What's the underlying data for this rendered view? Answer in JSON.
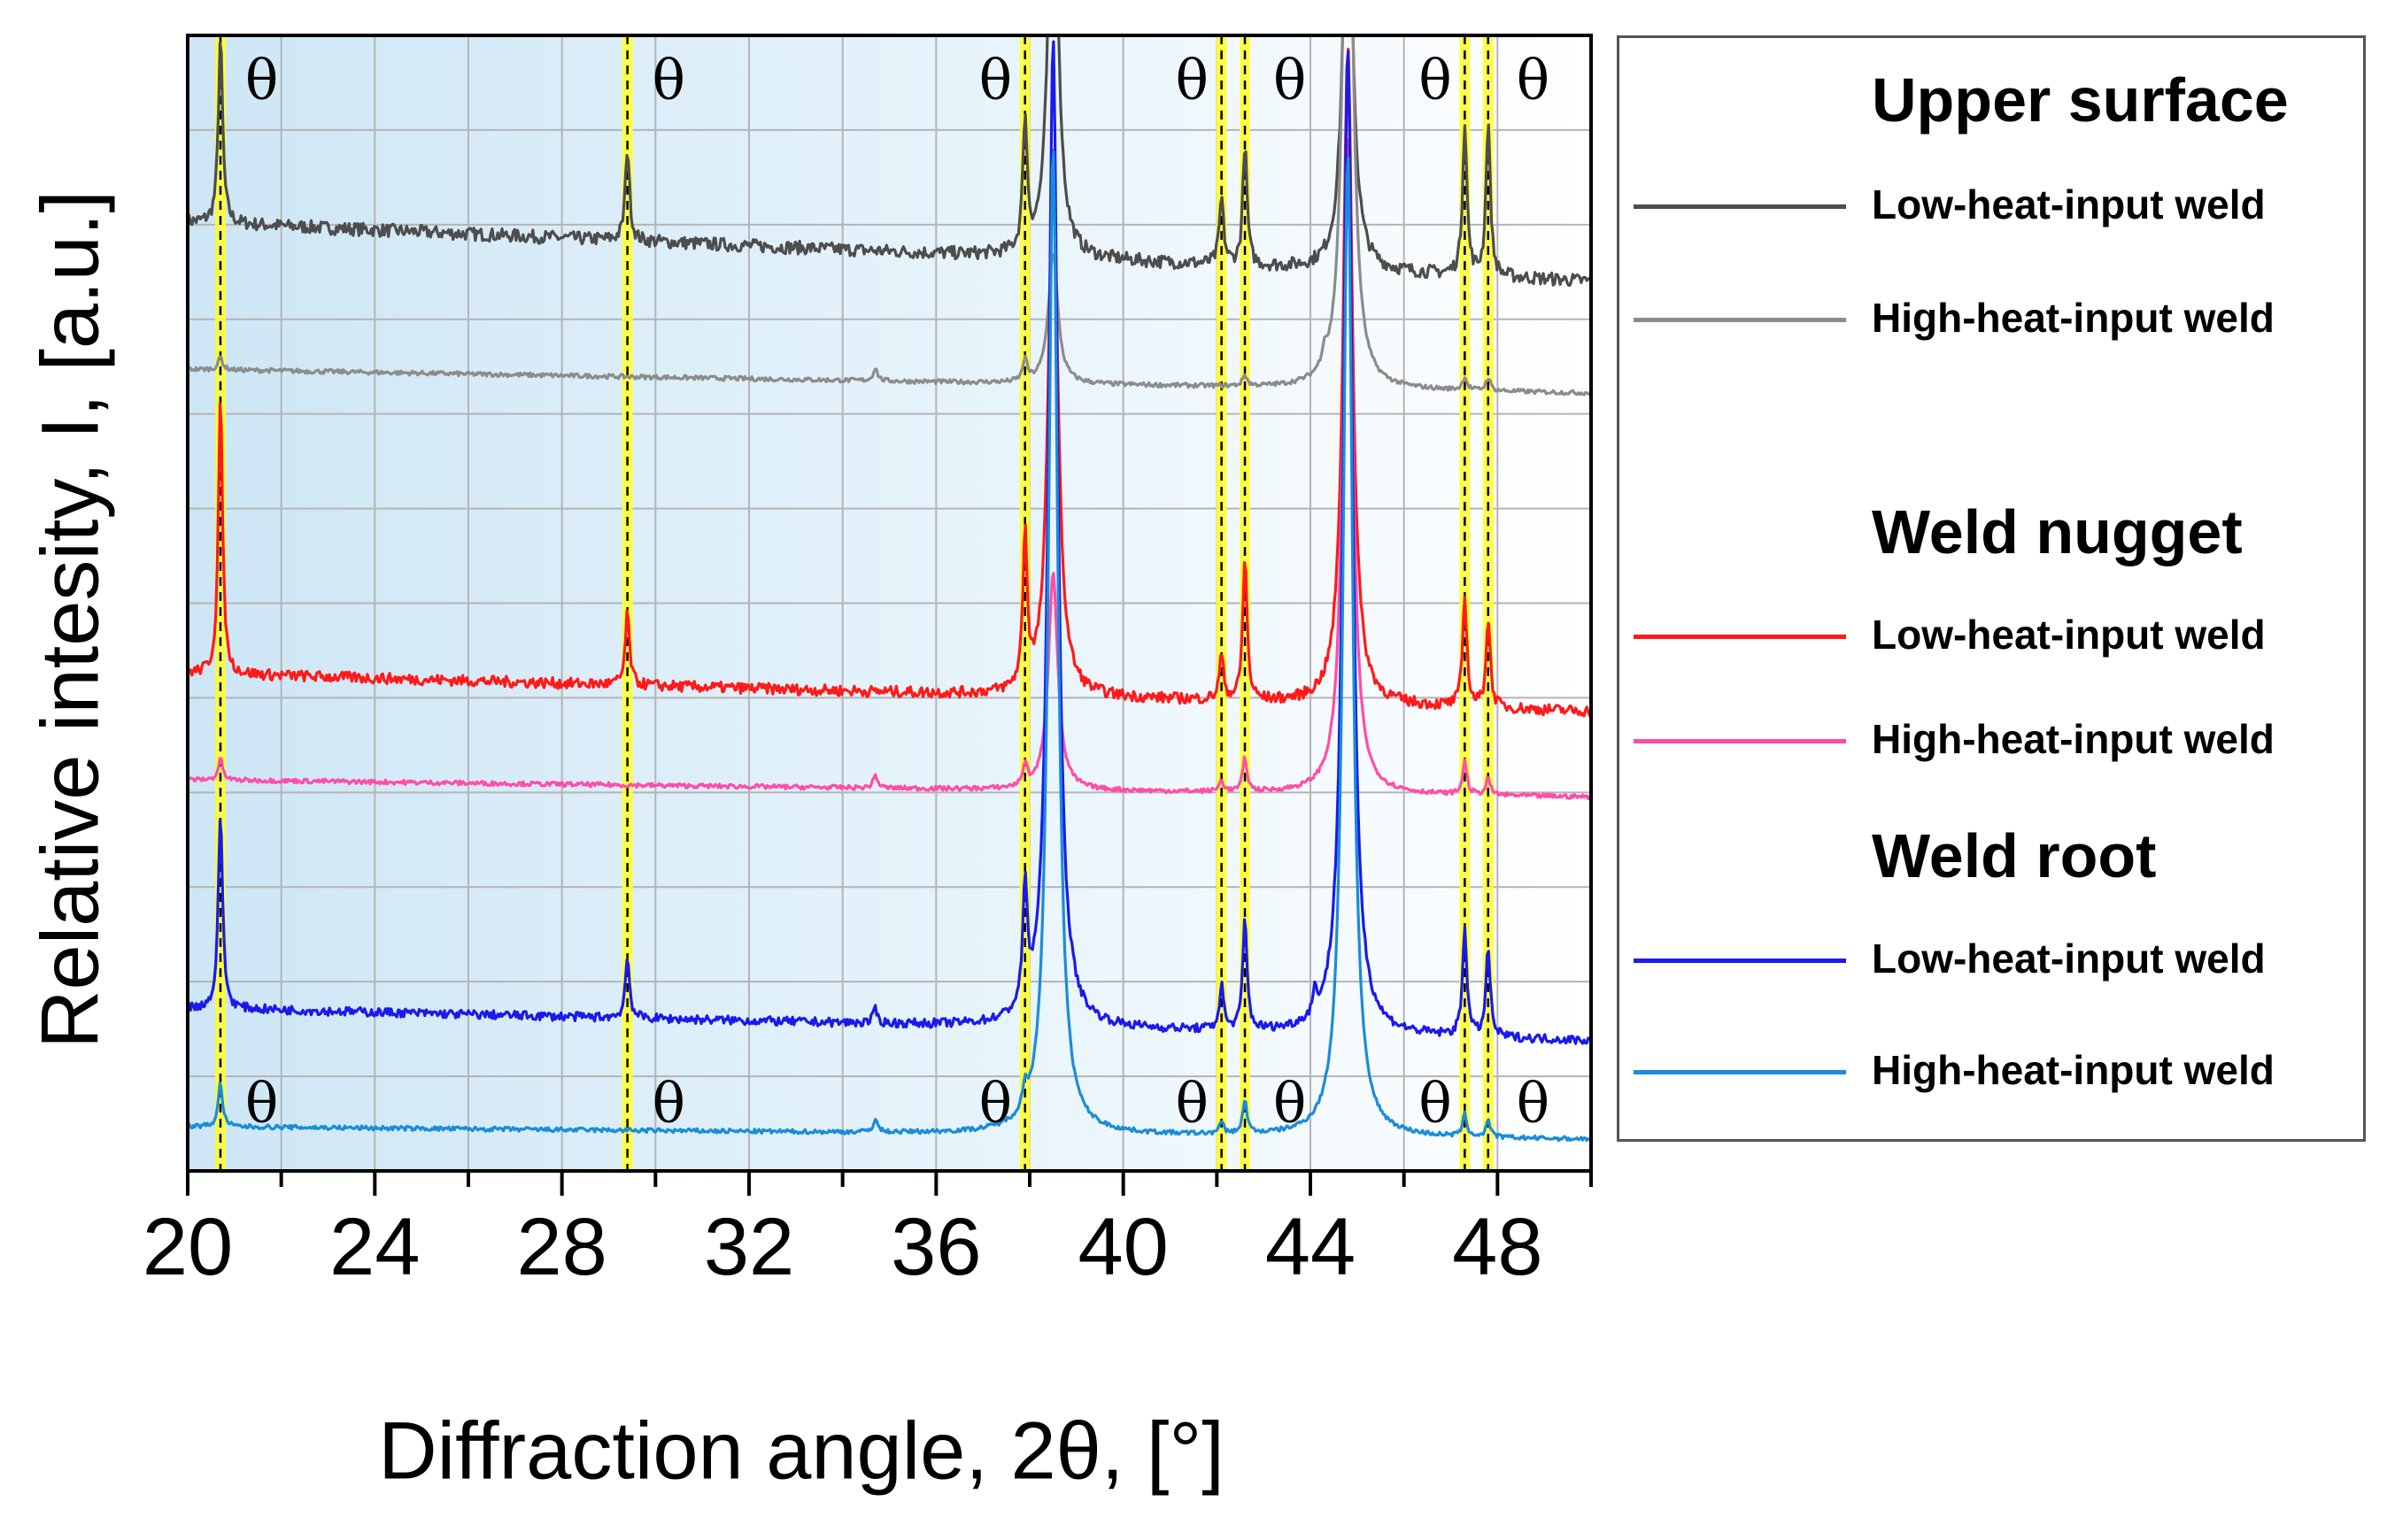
{
  "chart_data": {
    "type": "line",
    "title": "",
    "xlabel": "Diffraction angle, 2θ, [°]",
    "ylabel": "Relative intesity, I, [a.u.]",
    "xlim": [
      20,
      50
    ],
    "ylim": [
      0,
      1
    ],
    "grid": true,
    "x_ticks": [
      "20",
      "24",
      "28",
      "32",
      "36",
      "40",
      "44",
      "48"
    ],
    "x_tick_values": [
      20,
      24,
      28,
      32,
      36,
      40,
      44,
      48
    ],
    "y_ticks_shown": false,
    "legend_position": "right",
    "theta_peak_positions": [
      20.7,
      29.4,
      37.9,
      42.1,
      42.6,
      47.3,
      47.8
    ],
    "theta_symbol": "θ",
    "main_peaks": [
      38.5,
      44.8
    ],
    "legend": [
      {
        "group": "Upper surface",
        "entries": [
          "Low-heat-input weld",
          "High-heat-input weld"
        ]
      },
      {
        "group": "Weld nugget",
        "entries": [
          "Low-heat-input weld",
          "High-heat-input weld"
        ]
      },
      {
        "group": "Weld root",
        "entries": [
          "Low-heat-input weld",
          "High-heat-input weld"
        ]
      }
    ],
    "series": [
      {
        "name": "Upper surface – Low-heat-input weld",
        "color": "#4d4d4d",
        "baseline_start": 0.846,
        "baseline_end": 0.792,
        "noise": 0.006,
        "peaks": [
          {
            "x": 20.7,
            "h": 0.17
          },
          {
            "x": 29.4,
            "h": 0.085
          },
          {
            "x": 37.9,
            "h": 0.12
          },
          {
            "x": 38.5,
            "h": 0.4
          },
          {
            "x": 42.1,
            "h": 0.06
          },
          {
            "x": 42.6,
            "h": 0.11
          },
          {
            "x": 44.8,
            "h": 0.4
          },
          {
            "x": 47.3,
            "h": 0.14
          },
          {
            "x": 47.8,
            "h": 0.14
          }
        ]
      },
      {
        "name": "Upper surface – High-heat-input weld",
        "color": "#8c8c8c",
        "baseline_start": 0.712,
        "baseline_end": 0.69,
        "noise": 0.002,
        "peaks": [
          {
            "x": 20.7,
            "h": 0.012
          },
          {
            "x": 34.7,
            "h": 0.012
          },
          {
            "x": 37.9,
            "h": 0.02
          },
          {
            "x": 38.5,
            "h": 0.12
          },
          {
            "x": 42.6,
            "h": 0.01
          },
          {
            "x": 44.3,
            "h": 0.015
          },
          {
            "x": 44.8,
            "h": 0.6
          },
          {
            "x": 47.3,
            "h": 0.012
          },
          {
            "x": 47.8,
            "h": 0.012
          }
        ]
      },
      {
        "name": "Weld nugget – Low-heat-input weld",
        "color": "#ff1a1a",
        "baseline_start": 0.435,
        "baseline_end": 0.4,
        "noise": 0.005,
        "peaks": [
          {
            "x": 20.7,
            "h": 0.25
          },
          {
            "x": 29.4,
            "h": 0.065
          },
          {
            "x": 37.9,
            "h": 0.14
          },
          {
            "x": 38.5,
            "h": 0.5
          },
          {
            "x": 42.1,
            "h": 0.04
          },
          {
            "x": 42.6,
            "h": 0.13
          },
          {
            "x": 44.8,
            "h": 0.6
          },
          {
            "x": 47.3,
            "h": 0.1
          },
          {
            "x": 47.8,
            "h": 0.08
          }
        ]
      },
      {
        "name": "Weld nugget – High-heat-input weld",
        "color": "#ff4da6",
        "baseline_start": 0.338,
        "baseline_end": 0.322,
        "noise": 0.002,
        "peaks": [
          {
            "x": 20.7,
            "h": 0.02
          },
          {
            "x": 34.7,
            "h": 0.012
          },
          {
            "x": 37.9,
            "h": 0.02
          },
          {
            "x": 38.5,
            "h": 0.2
          },
          {
            "x": 42.1,
            "h": 0.01
          },
          {
            "x": 42.6,
            "h": 0.03
          },
          {
            "x": 44.8,
            "h": 0.6
          },
          {
            "x": 47.3,
            "h": 0.03
          },
          {
            "x": 47.8,
            "h": 0.015
          }
        ]
      },
      {
        "name": "Weld root – Low-heat-input weld",
        "color": "#1a1aeb",
        "baseline_start": 0.13,
        "baseline_end": 0.1,
        "noise": 0.004,
        "peaks": [
          {
            "x": 20.7,
            "h": 0.18
          },
          {
            "x": 29.4,
            "h": 0.055
          },
          {
            "x": 34.7,
            "h": 0.012
          },
          {
            "x": 37.9,
            "h": 0.11
          },
          {
            "x": 38.5,
            "h": 0.9
          },
          {
            "x": 42.1,
            "h": 0.04
          },
          {
            "x": 42.6,
            "h": 0.1
          },
          {
            "x": 44.1,
            "h": 0.02
          },
          {
            "x": 44.8,
            "h": 0.9
          },
          {
            "x": 47.3,
            "h": 0.1
          },
          {
            "x": 47.8,
            "h": 0.08
          }
        ]
      },
      {
        "name": "Weld root – High-heat-input weld",
        "color": "#1a8cd9",
        "baseline_start": 0.022,
        "baseline_end": 0.01,
        "noise": 0.002,
        "peaks": [
          {
            "x": 20.7,
            "h": 0.04
          },
          {
            "x": 34.7,
            "h": 0.012
          },
          {
            "x": 37.9,
            "h": 0.02
          },
          {
            "x": 38.5,
            "h": 0.9
          },
          {
            "x": 42.1,
            "h": 0.01
          },
          {
            "x": 42.6,
            "h": 0.03
          },
          {
            "x": 44.8,
            "h": 0.9
          },
          {
            "x": 47.3,
            "h": 0.02
          },
          {
            "x": 47.8,
            "h": 0.015
          }
        ]
      }
    ]
  }
}
